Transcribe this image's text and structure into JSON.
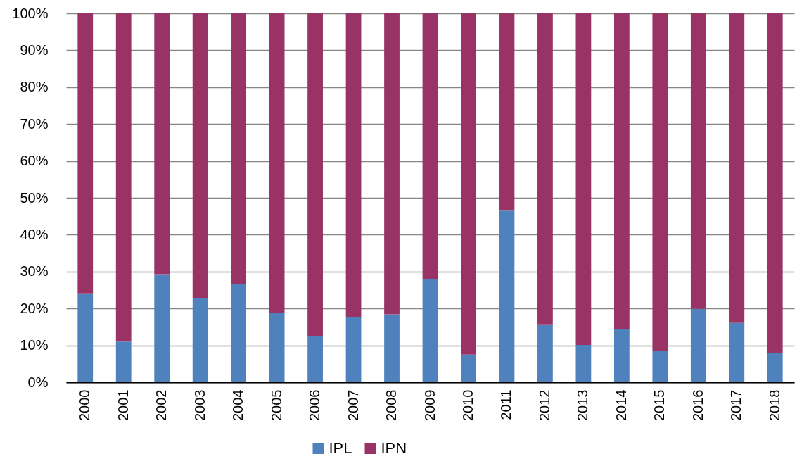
{
  "chart_data": {
    "type": "bar",
    "categories": [
      "2000",
      "2001",
      "2002",
      "2003",
      "2004",
      "2005",
      "2006",
      "2007",
      "2008",
      "2009",
      "2010",
      "2011",
      "2012",
      "2013",
      "2014",
      "2015",
      "2016",
      "2017",
      "2018"
    ],
    "series": [
      {
        "name": "IPL",
        "color": "#4f81bd",
        "values": [
          24.1,
          11.0,
          29.3,
          22.8,
          26.6,
          18.9,
          12.6,
          17.6,
          18.4,
          27.9,
          7.5,
          46.5,
          15.7,
          10.1,
          14.4,
          8.4,
          19.9,
          16.1,
          7.9
        ]
      },
      {
        "name": "IPN",
        "color": "#993366",
        "values": [
          75.9,
          89.0,
          70.7,
          77.2,
          73.4,
          81.1,
          87.4,
          82.4,
          81.6,
          72.1,
          92.5,
          53.5,
          84.3,
          89.9,
          85.6,
          91.6,
          80.1,
          83.9,
          92.1
        ]
      }
    ],
    "stacked": true,
    "ylim": [
      0,
      100
    ],
    "yticks": [
      {
        "value": 0,
        "label": "0%"
      },
      {
        "value": 10,
        "label": "10%"
      },
      {
        "value": 20,
        "label": "20%"
      },
      {
        "value": 30,
        "label": "30%"
      },
      {
        "value": 40,
        "label": "40%"
      },
      {
        "value": 50,
        "label": "50%"
      },
      {
        "value": 60,
        "label": "60%"
      },
      {
        "value": 70,
        "label": "70%"
      },
      {
        "value": 80,
        "label": "80%"
      },
      {
        "value": 90,
        "label": "90%"
      },
      {
        "value": 100,
        "label": "100%"
      }
    ],
    "grid": "y",
    "legend": "bottom"
  }
}
